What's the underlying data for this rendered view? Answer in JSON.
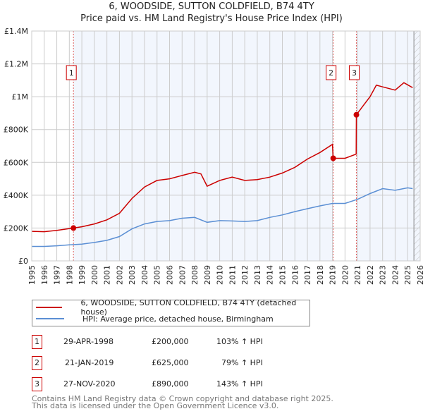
{
  "chart_data": {
    "type": "line",
    "title": "6, WOODSIDE, SUTTON COLDFIELD, B74 4TY",
    "subtitle": "Price paid vs. HM Land Registry's House Price Index (HPI)",
    "xlim": [
      1995,
      2026
    ],
    "ylim": [
      0,
      1400000
    ],
    "x_ticks": [
      1995,
      1996,
      1997,
      1998,
      1999,
      2000,
      2001,
      2002,
      2003,
      2004,
      2005,
      2006,
      2007,
      2008,
      2009,
      2010,
      2011,
      2012,
      2013,
      2014,
      2015,
      2016,
      2017,
      2018,
      2019,
      2020,
      2021,
      2022,
      2023,
      2024,
      2025,
      2026
    ],
    "y_ticks": [
      {
        "v": 0,
        "label": "£0"
      },
      {
        "v": 200000,
        "label": "£200K"
      },
      {
        "v": 400000,
        "label": "£400K"
      },
      {
        "v": 600000,
        "label": "£600K"
      },
      {
        "v": 800000,
        "label": "£800K"
      },
      {
        "v": 1000000,
        "label": "£1M"
      },
      {
        "v": 1200000,
        "label": "£1.2M"
      },
      {
        "v": 1400000,
        "label": "£1.4M"
      }
    ],
    "grid": true,
    "series": [
      {
        "name": "6, WOODSIDE, SUTTON COLDFIELD, B74 4TY (detached house)",
        "color": "#cc0000",
        "x": [
          1995,
          1996,
          1997,
          1998.33,
          1999,
          2000,
          2001,
          2002,
          2003,
          2004,
          2005,
          2006,
          2007,
          2008,
          2008.5,
          2009,
          2010,
          2011,
          2012,
          2013,
          2014,
          2015,
          2016,
          2017,
          2018,
          2019.0,
          2019.06,
          2020,
          2020.89,
          2020.91,
          2021.5,
          2022,
          2022.5,
          2023,
          2024,
          2024.7,
          2025.4
        ],
        "y": [
          180000,
          178000,
          186000,
          200000,
          208000,
          225000,
          250000,
          290000,
          380000,
          450000,
          490000,
          500000,
          520000,
          540000,
          530000,
          455000,
          490000,
          510000,
          490000,
          495000,
          510000,
          535000,
          570000,
          620000,
          660000,
          710000,
          625000,
          625000,
          650000,
          890000,
          950000,
          1000000,
          1070000,
          1060000,
          1040000,
          1085000,
          1055000
        ]
      },
      {
        "name": "HPI: Average price, detached house, Birmingham",
        "color": "#5b8fd4",
        "x": [
          1995,
          1996,
          1997,
          1998,
          1999,
          2000,
          2001,
          2002,
          2003,
          2004,
          2005,
          2006,
          2007,
          2008,
          2009,
          2010,
          2011,
          2012,
          2013,
          2014,
          2015,
          2016,
          2017,
          2018,
          2019,
          2020,
          2021,
          2022,
          2023,
          2024,
          2025,
          2025.4
        ],
        "y": [
          88000,
          88000,
          92000,
          98000,
          102000,
          112000,
          125000,
          148000,
          195000,
          225000,
          240000,
          245000,
          260000,
          265000,
          235000,
          245000,
          243000,
          240000,
          245000,
          265000,
          280000,
          300000,
          318000,
          335000,
          350000,
          350000,
          375000,
          410000,
          440000,
          430000,
          445000,
          440000
        ]
      }
    ],
    "sales": [
      {
        "id": "1",
        "x": 1998.33,
        "y": 200000,
        "date": "29-APR-1998",
        "price": "£200,000",
        "hpi": "103% ↑ HPI"
      },
      {
        "id": "2",
        "x": 2019.06,
        "y": 625000,
        "date": "21-JAN-2019",
        "price": "£625,000",
        "hpi": "79% ↑ HPI"
      },
      {
        "id": "3",
        "x": 2020.91,
        "y": 890000,
        "date": "27-NOV-2020",
        "price": "£890,000",
        "hpi": "143% ↑ HPI"
      }
    ],
    "shaded_ranges": [
      [
        1998.33,
        2019.06
      ],
      [
        2020.91,
        2026
      ]
    ],
    "forecast_from": 2025.5,
    "legend": "bottom"
  },
  "footer": [
    "Contains HM Land Registry data © Crown copyright and database right 2025.",
    "This data is licensed under the Open Government Licence v3.0."
  ]
}
